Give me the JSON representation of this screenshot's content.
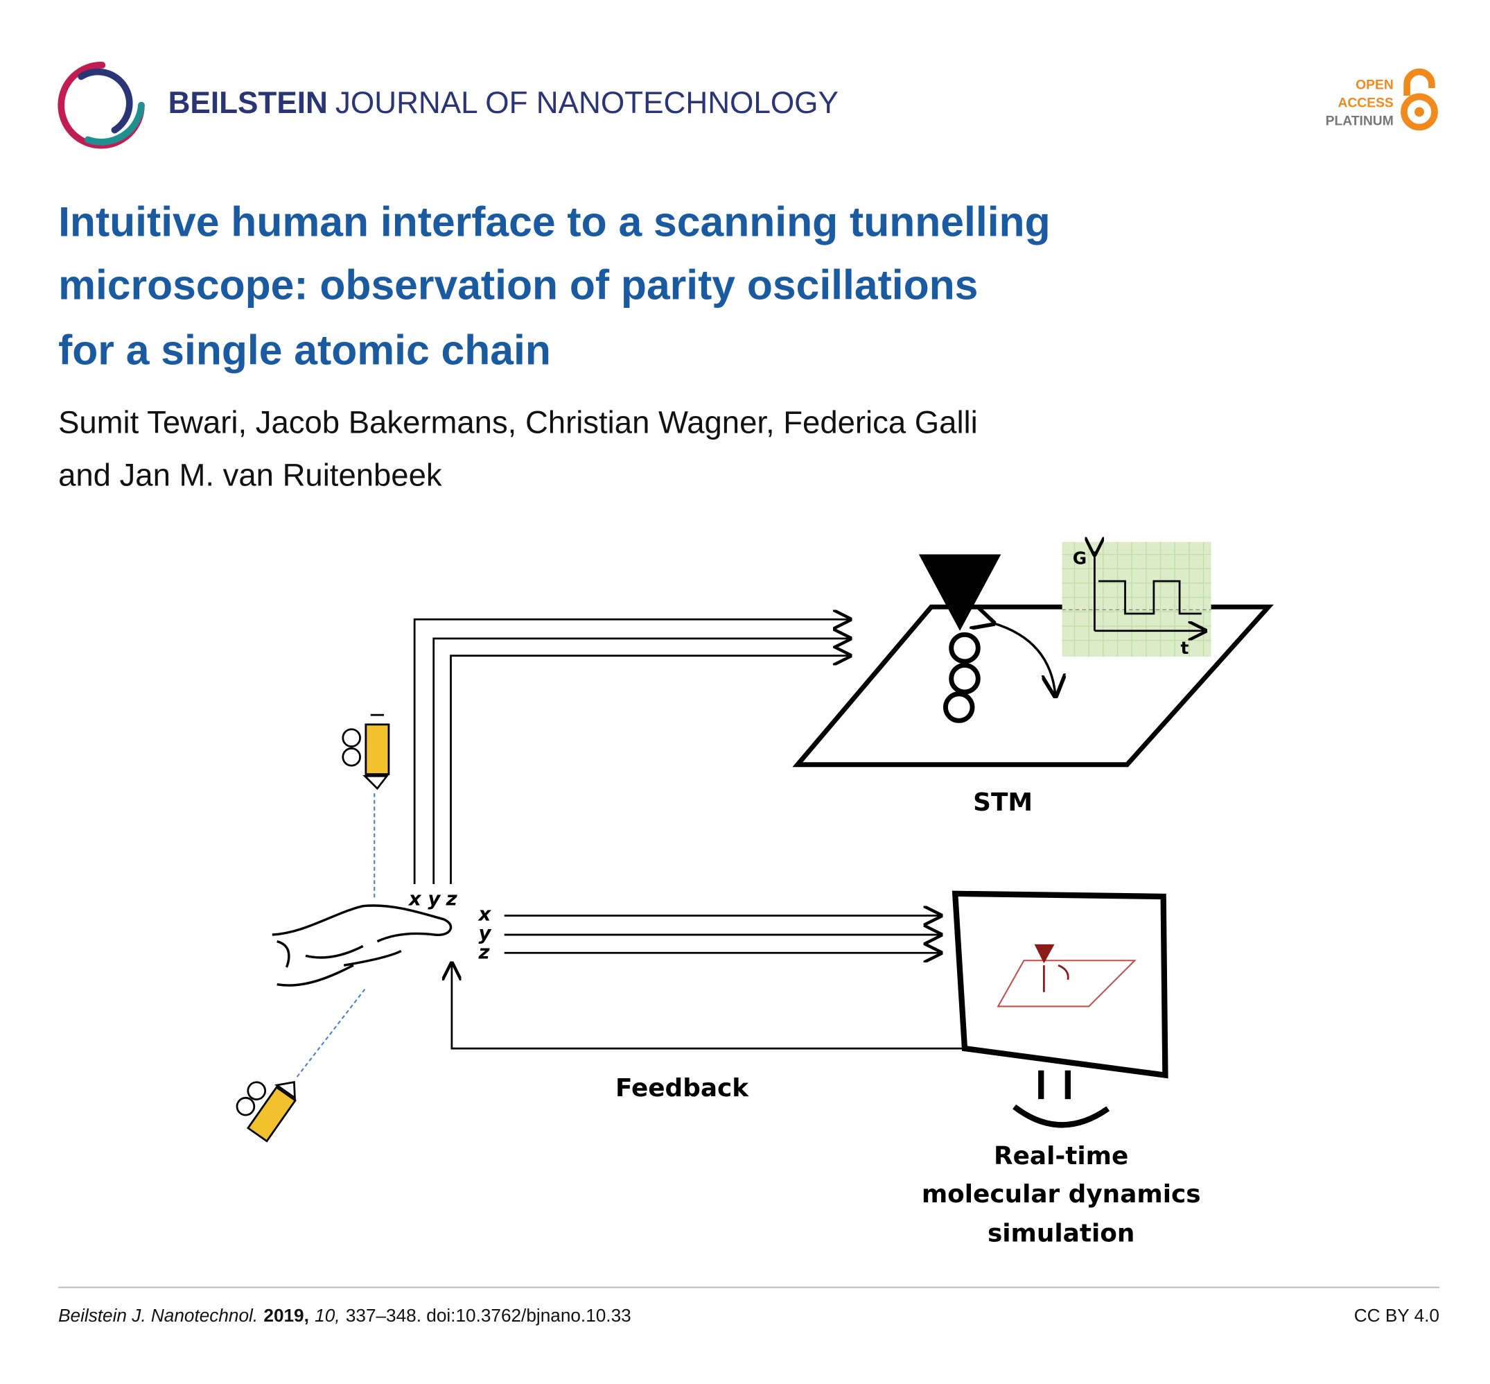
{
  "header": {
    "journal_bold": "BEILSTEIN",
    "journal_rest": "JOURNAL OF NANOTECHNOLOGY",
    "badge": [
      "OPEN",
      "ACCESS",
      "PLATINUM"
    ]
  },
  "title": [
    "Intuitive human interface to a scanning tunnelling",
    "microscope: observation of parity oscillations",
    "for a single atomic chain"
  ],
  "authors": [
    "Sumit Tewari, Jacob Bakermans, Christian Wagner, Federica Galli",
    "and Jan M. van Ruitenbeek"
  ],
  "figure": {
    "inset_y_axis": "G",
    "inset_x_axis": "t",
    "stm_label": "STM",
    "hand_axes": [
      "x",
      "y",
      "z"
    ],
    "sim_axes": [
      "x",
      "y",
      "z"
    ],
    "feedback_label": "Feedback",
    "sim_label": [
      "Real-time",
      "molecular dynamics",
      "simulation"
    ]
  },
  "footer": {
    "journal": "Beilstein J. Nanotechnol.",
    "year": "2019,",
    "volume": "10,",
    "pages_doi": "337–348. doi:10.3762/bjnano.10.33",
    "license": "CC BY 4.0"
  }
}
